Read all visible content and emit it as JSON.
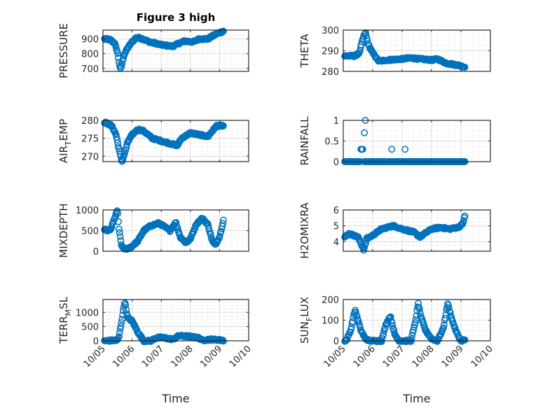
{
  "figure": {
    "title": "Figure 3 high",
    "marker_color": "#0072bd",
    "axis_color": "#262626",
    "grid_color": "#dcdcdc"
  },
  "chart_data": [
    {
      "type": "scatter",
      "title": "Figure 3 high",
      "ylabel": "PRESSURE",
      "xlabel": "",
      "xlim": [
        "10/05",
        "10/10"
      ],
      "xticks": [
        "10/05",
        "10/06",
        "10/07",
        "10/08",
        "10/09",
        "10/10"
      ],
      "ylim": [
        680,
        960
      ],
      "yticks": [
        700,
        800,
        900
      ],
      "grid": true,
      "minor_grid": true,
      "keypoints_day_value": [
        [
          0.05,
          900
        ],
        [
          0.25,
          895
        ],
        [
          0.4,
          870
        ],
        [
          0.5,
          810
        ],
        [
          0.55,
          745
        ],
        [
          0.6,
          690
        ],
        [
          0.65,
          730
        ],
        [
          0.72,
          790
        ],
        [
          0.85,
          840
        ],
        [
          1.0,
          880
        ],
        [
          1.15,
          910
        ],
        [
          1.3,
          905
        ],
        [
          1.6,
          880
        ],
        [
          2.0,
          860
        ],
        [
          2.4,
          850
        ],
        [
          2.6,
          870
        ],
        [
          2.8,
          885
        ],
        [
          3.1,
          880
        ],
        [
          3.3,
          900
        ],
        [
          3.6,
          900
        ],
        [
          3.85,
          930
        ],
        [
          4.1,
          950
        ],
        [
          4.15,
          955
        ]
      ]
    },
    {
      "type": "scatter",
      "ylabel": "THETA",
      "xlabel": "",
      "xlim": [
        "10/05",
        "10/10"
      ],
      "xticks": [
        "10/05",
        "10/06",
        "10/07",
        "10/08",
        "10/09",
        "10/10"
      ],
      "ylim": [
        280,
        300
      ],
      "yticks": [
        280,
        290,
        300
      ],
      "grid": true,
      "minor_grid": true,
      "keypoints_day_value": [
        [
          0.05,
          287.5
        ],
        [
          0.4,
          287.5
        ],
        [
          0.55,
          289
        ],
        [
          0.65,
          295
        ],
        [
          0.75,
          299
        ],
        [
          0.85,
          293
        ],
        [
          1.0,
          289
        ],
        [
          1.2,
          285
        ],
        [
          1.5,
          285.5
        ],
        [
          2.0,
          286
        ],
        [
          2.3,
          286.5
        ],
        [
          2.6,
          286
        ],
        [
          3.0,
          285.5
        ],
        [
          3.2,
          286
        ],
        [
          3.5,
          284
        ],
        [
          3.9,
          283
        ],
        [
          4.15,
          282
        ]
      ]
    },
    {
      "type": "scatter",
      "ylabel": "AIR_TEMP",
      "ylabel_display": {
        "base": "AIR",
        "sub": "T",
        "rest": "EMP"
      },
      "xlabel": "",
      "xlim": [
        "10/05",
        "10/10"
      ],
      "xticks": [
        "10/05",
        "10/06",
        "10/07",
        "10/08",
        "10/09",
        "10/10"
      ],
      "ylim": [
        268.5,
        280
      ],
      "yticks": [
        270,
        275,
        280
      ],
      "grid": true,
      "minor_grid": true,
      "keypoints_day_value": [
        [
          0.05,
          279.5
        ],
        [
          0.3,
          278.5
        ],
        [
          0.45,
          276
        ],
        [
          0.55,
          272
        ],
        [
          0.65,
          268.5
        ],
        [
          0.75,
          271
        ],
        [
          0.85,
          274
        ],
        [
          1.0,
          276
        ],
        [
          1.2,
          277.5
        ],
        [
          1.4,
          277
        ],
        [
          1.7,
          275
        ],
        [
          2.1,
          274
        ],
        [
          2.55,
          273
        ],
        [
          2.7,
          275
        ],
        [
          3.0,
          276.5
        ],
        [
          3.3,
          276
        ],
        [
          3.6,
          275.5
        ],
        [
          3.9,
          278.5
        ],
        [
          4.15,
          278.5
        ]
      ]
    },
    {
      "type": "scatter",
      "ylabel": "RAINFALL",
      "xlabel": "",
      "xlim": [
        "10/05",
        "10/10"
      ],
      "xticks": [
        "10/05",
        "10/06",
        "10/07",
        "10/08",
        "10/09",
        "10/10"
      ],
      "ylim": [
        0,
        1
      ],
      "yticks": [
        0,
        0.5,
        1
      ],
      "grid": true,
      "minor_grid": true,
      "baseline_value": 0,
      "nonzero_points_day_value": [
        [
          0.6,
          0.3
        ],
        [
          0.63,
          0.3
        ],
        [
          0.66,
          0.3
        ],
        [
          0.72,
          0.7
        ],
        [
          0.75,
          1.0
        ],
        [
          1.65,
          0.3
        ],
        [
          2.1,
          0.3
        ]
      ]
    },
    {
      "type": "scatter",
      "ylabel": "MIXDEPTH",
      "xlabel": "",
      "xlim": [
        "10/05",
        "10/10"
      ],
      "xticks": [
        "10/05",
        "10/06",
        "10/07",
        "10/08",
        "10/09",
        "10/10"
      ],
      "ylim": [
        0,
        1000
      ],
      "yticks": [
        0,
        500,
        1000
      ],
      "grid": true,
      "minor_grid": true,
      "keypoints_day_value": [
        [
          0.05,
          520
        ],
        [
          0.25,
          500
        ],
        [
          0.4,
          800
        ],
        [
          0.5,
          1000
        ],
        [
          0.55,
          520
        ],
        [
          0.65,
          100
        ],
        [
          0.8,
          50
        ],
        [
          1.0,
          120
        ],
        [
          1.2,
          250
        ],
        [
          1.4,
          500
        ],
        [
          1.6,
          600
        ],
        [
          1.9,
          680
        ],
        [
          2.1,
          600
        ],
        [
          2.3,
          500
        ],
        [
          2.5,
          700
        ],
        [
          2.65,
          350
        ],
        [
          2.85,
          200
        ],
        [
          3.0,
          300
        ],
        [
          3.2,
          650
        ],
        [
          3.4,
          800
        ],
        [
          3.6,
          650
        ],
        [
          3.75,
          250
        ],
        [
          3.85,
          150
        ],
        [
          4.0,
          350
        ],
        [
          4.15,
          800
        ]
      ]
    },
    {
      "type": "scatter",
      "ylabel": "H2OMIXRA",
      "xlabel": "",
      "xlim": [
        "10/05",
        "10/10"
      ],
      "xticks": [
        "10/05",
        "10/06",
        "10/07",
        "10/08",
        "10/09",
        "10/10"
      ],
      "ylim": [
        3.4,
        6
      ],
      "yticks": [
        4,
        5,
        6
      ],
      "grid": true,
      "minor_grid": true,
      "keypoints_day_value": [
        [
          0.05,
          4.3
        ],
        [
          0.2,
          4.5
        ],
        [
          0.5,
          4.3
        ],
        [
          0.7,
          3.5
        ],
        [
          0.8,
          4.2
        ],
        [
          1.0,
          4.4
        ],
        [
          1.3,
          4.8
        ],
        [
          1.7,
          5.0
        ],
        [
          2.0,
          4.8
        ],
        [
          2.4,
          4.6
        ],
        [
          2.6,
          4.3
        ],
        [
          3.0,
          4.8
        ],
        [
          3.3,
          4.9
        ],
        [
          3.6,
          4.8
        ],
        [
          3.9,
          4.9
        ],
        [
          4.05,
          5.1
        ],
        [
          4.15,
          5.7
        ]
      ]
    },
    {
      "type": "scatter",
      "ylabel": "TERR_MSL",
      "ylabel_display": {
        "base": "TERR",
        "sub": "M",
        "rest": "SL"
      },
      "xlabel": "Time",
      "xlim": [
        "10/05",
        "10/10"
      ],
      "xticks": [
        "10/05",
        "10/06",
        "10/07",
        "10/08",
        "10/09",
        "10/10"
      ],
      "ylim": [
        0,
        1450
      ],
      "yticks": [
        0,
        500,
        1000
      ],
      "grid": true,
      "minor_grid": true,
      "keypoints_day_value": [
        [
          0.05,
          0
        ],
        [
          0.5,
          20
        ],
        [
          0.55,
          150
        ],
        [
          0.65,
          750
        ],
        [
          0.75,
          1400
        ],
        [
          0.8,
          1100
        ],
        [
          0.85,
          800
        ],
        [
          1.0,
          700
        ],
        [
          1.2,
          300
        ],
        [
          1.4,
          0
        ],
        [
          1.65,
          0
        ],
        [
          1.8,
          100
        ],
        [
          2.0,
          120
        ],
        [
          2.4,
          50
        ],
        [
          2.6,
          180
        ],
        [
          3.0,
          150
        ],
        [
          3.3,
          100
        ],
        [
          3.4,
          20
        ],
        [
          3.7,
          50
        ],
        [
          4.0,
          30
        ],
        [
          4.15,
          10
        ]
      ]
    },
    {
      "type": "scatter",
      "ylabel": "SUN_FLUX",
      "ylabel_display": {
        "base": "SUN",
        "sub": "F",
        "rest": "LUX"
      },
      "xlabel": "Time",
      "xlim": [
        "10/05",
        "10/10"
      ],
      "xticks": [
        "10/05",
        "10/06",
        "10/07",
        "10/08",
        "10/09",
        "10/10"
      ],
      "ylim": [
        0,
        200
      ],
      "yticks": [
        0,
        100,
        200
      ],
      "grid": true,
      "minor_grid": true,
      "keypoints_day_value": [
        [
          0.1,
          0
        ],
        [
          0.25,
          50
        ],
        [
          0.4,
          150
        ],
        [
          0.5,
          100
        ],
        [
          0.6,
          50
        ],
        [
          0.75,
          10
        ],
        [
          0.9,
          0
        ],
        [
          1.3,
          0
        ],
        [
          1.45,
          80
        ],
        [
          1.6,
          120
        ],
        [
          1.75,
          30
        ],
        [
          1.9,
          0
        ],
        [
          2.3,
          0
        ],
        [
          2.45,
          90
        ],
        [
          2.55,
          180
        ],
        [
          2.65,
          110
        ],
        [
          2.8,
          50
        ],
        [
          3.0,
          10
        ],
        [
          3.2,
          0
        ],
        [
          3.4,
          60
        ],
        [
          3.55,
          180
        ],
        [
          3.7,
          100
        ],
        [
          3.85,
          40
        ],
        [
          4.0,
          0
        ],
        [
          4.15,
          5
        ]
      ]
    }
  ]
}
